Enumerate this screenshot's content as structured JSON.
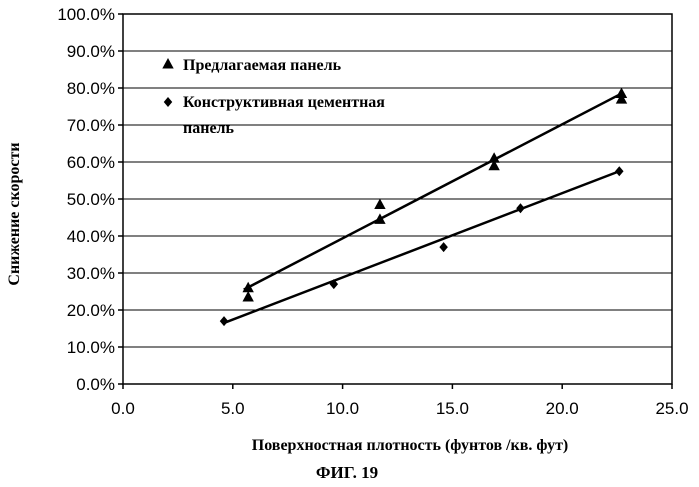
{
  "chart_data": {
    "type": "scatter",
    "title": "",
    "xlabel": "Поверхностная плотность (фунтов /кв. фут)",
    "ylabel": "Снижение скорости",
    "xlim": [
      0,
      25
    ],
    "ylim": [
      0,
      1
    ],
    "x_ticks": [
      "0.0",
      "5.0",
      "10.0",
      "15.0",
      "20.0",
      "25.0"
    ],
    "y_ticks": [
      "0.0%",
      "10.0%",
      "20.0%",
      "30.0%",
      "40.0%",
      "50.0%",
      "60.0%",
      "70.0%",
      "80.0%",
      "90.0%",
      "100.0%"
    ],
    "grid": "horizontal",
    "legend_position": "top-left",
    "series": [
      {
        "name": "Предлагаемая панель",
        "marker": "triangle",
        "points": [
          {
            "x": 5.7,
            "y": 0.26
          },
          {
            "x": 5.7,
            "y": 0.235
          },
          {
            "x": 11.7,
            "y": 0.485
          },
          {
            "x": 11.7,
            "y": 0.445
          },
          {
            "x": 16.9,
            "y": 0.61
          },
          {
            "x": 16.9,
            "y": 0.59
          },
          {
            "x": 22.7,
            "y": 0.785
          },
          {
            "x": 22.7,
            "y": 0.77
          }
        ],
        "trendline": [
          {
            "x": 5.5,
            "y": 0.255
          },
          {
            "x": 22.7,
            "y": 0.785
          }
        ]
      },
      {
        "name": "Конструктивная цементная панель",
        "legend_lines": [
          "Конструктивная цементная",
          "панель"
        ],
        "marker": "diamond",
        "points": [
          {
            "x": 4.6,
            "y": 0.17
          },
          {
            "x": 9.6,
            "y": 0.27
          },
          {
            "x": 14.6,
            "y": 0.37
          },
          {
            "x": 18.1,
            "y": 0.475
          },
          {
            "x": 22.6,
            "y": 0.575
          }
        ],
        "trendline": [
          {
            "x": 4.6,
            "y": 0.165
          },
          {
            "x": 22.6,
            "y": 0.575
          }
        ]
      }
    ]
  },
  "figure_label": "ФИГ. 19"
}
